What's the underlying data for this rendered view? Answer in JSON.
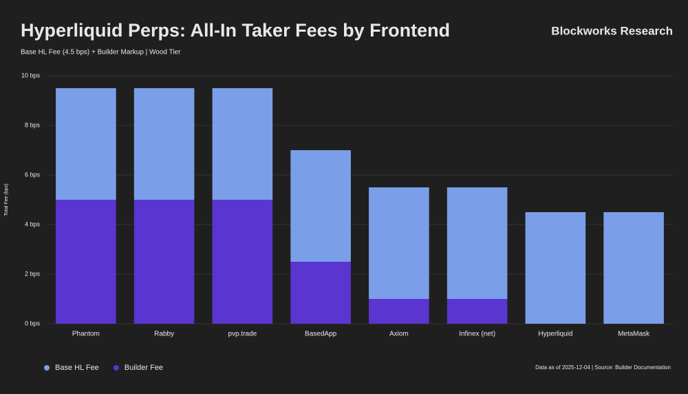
{
  "chart_data": {
    "type": "stacked_bar",
    "title": "Hyperliquid Perps: All-In Taker Fees by Frontend",
    "subtitle": "Base HL Fee (4.5 bps) + Builder Markup | Wood Tier",
    "brand": "Blockworks Research",
    "y_label": "Total Fee (bps)",
    "footer": "Data as of 2025-12-04 | Source: Builder Documentation",
    "categories": [
      "Phantom",
      "Rabby",
      "pvp.trade",
      "BasedApp",
      "Axiom",
      "Infinex (net)",
      "Hyperliquid",
      "MetaMask"
    ],
    "series": [
      {
        "name": "Base HL Fee",
        "color": "#7b9ee8",
        "values": [
          4.5,
          4.5,
          4.5,
          4.5,
          4.5,
          4.5,
          4.5,
          4.5
        ]
      },
      {
        "name": "Builder Fee",
        "color": "#5a35d0",
        "values": [
          5,
          5,
          5,
          2.5,
          1,
          1,
          0,
          0
        ]
      }
    ],
    "ylim": [
      0,
      10
    ],
    "yticks": [
      {
        "value": 0,
        "label": "0 bps"
      },
      {
        "value": 2,
        "label": "2 bps"
      },
      {
        "value": 4,
        "label": "4 bps"
      },
      {
        "value": 6,
        "label": "6 bps"
      },
      {
        "value": 8,
        "label": "8 bps"
      },
      {
        "value": 10,
        "label": "10 bps"
      }
    ],
    "grid": true,
    "legend": "bottom-left"
  }
}
